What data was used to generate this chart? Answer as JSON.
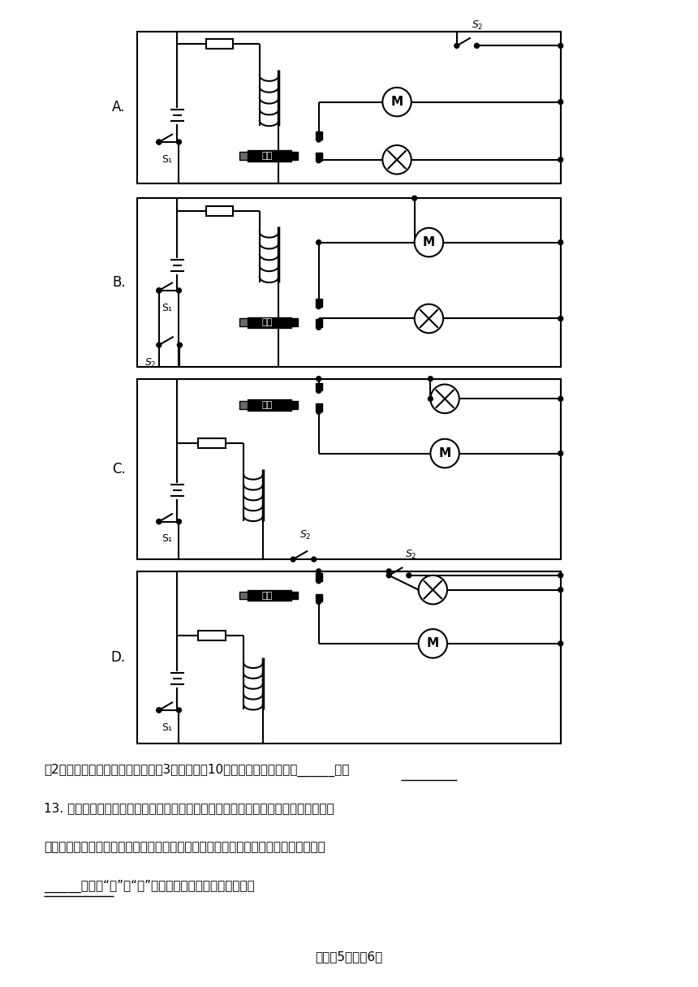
{
  "bg_color": "#ffffff",
  "text_color": "#000000",
  "line_color": "#000000",
  "page_text": "试卷第5页，兲6页",
  "question_2": "（2）若警示灯工作时，两端电压为3伏，电阔为10欧，其工作时的功率为______瓦。",
  "question_13": "13. 下水井盖的丢失给人们出行带来了安全隐患。为提示路人注意安全，小明设计了如",
  "question_13b": "图所示的电路，电路中利用一元硬币代替铁质井盖；当井盖丢失时，继电器的动触点与",
  "question_13c": "______（选填“上”或“下”）静触点接触，起到报警作用。",
  "label_A": "A.",
  "label_B": "B.",
  "label_C": "C.",
  "label_D": "D.",
  "dang_tie": "衬铁",
  "motor_label": "M",
  "switch1": "S₁",
  "switch2": "S₂"
}
